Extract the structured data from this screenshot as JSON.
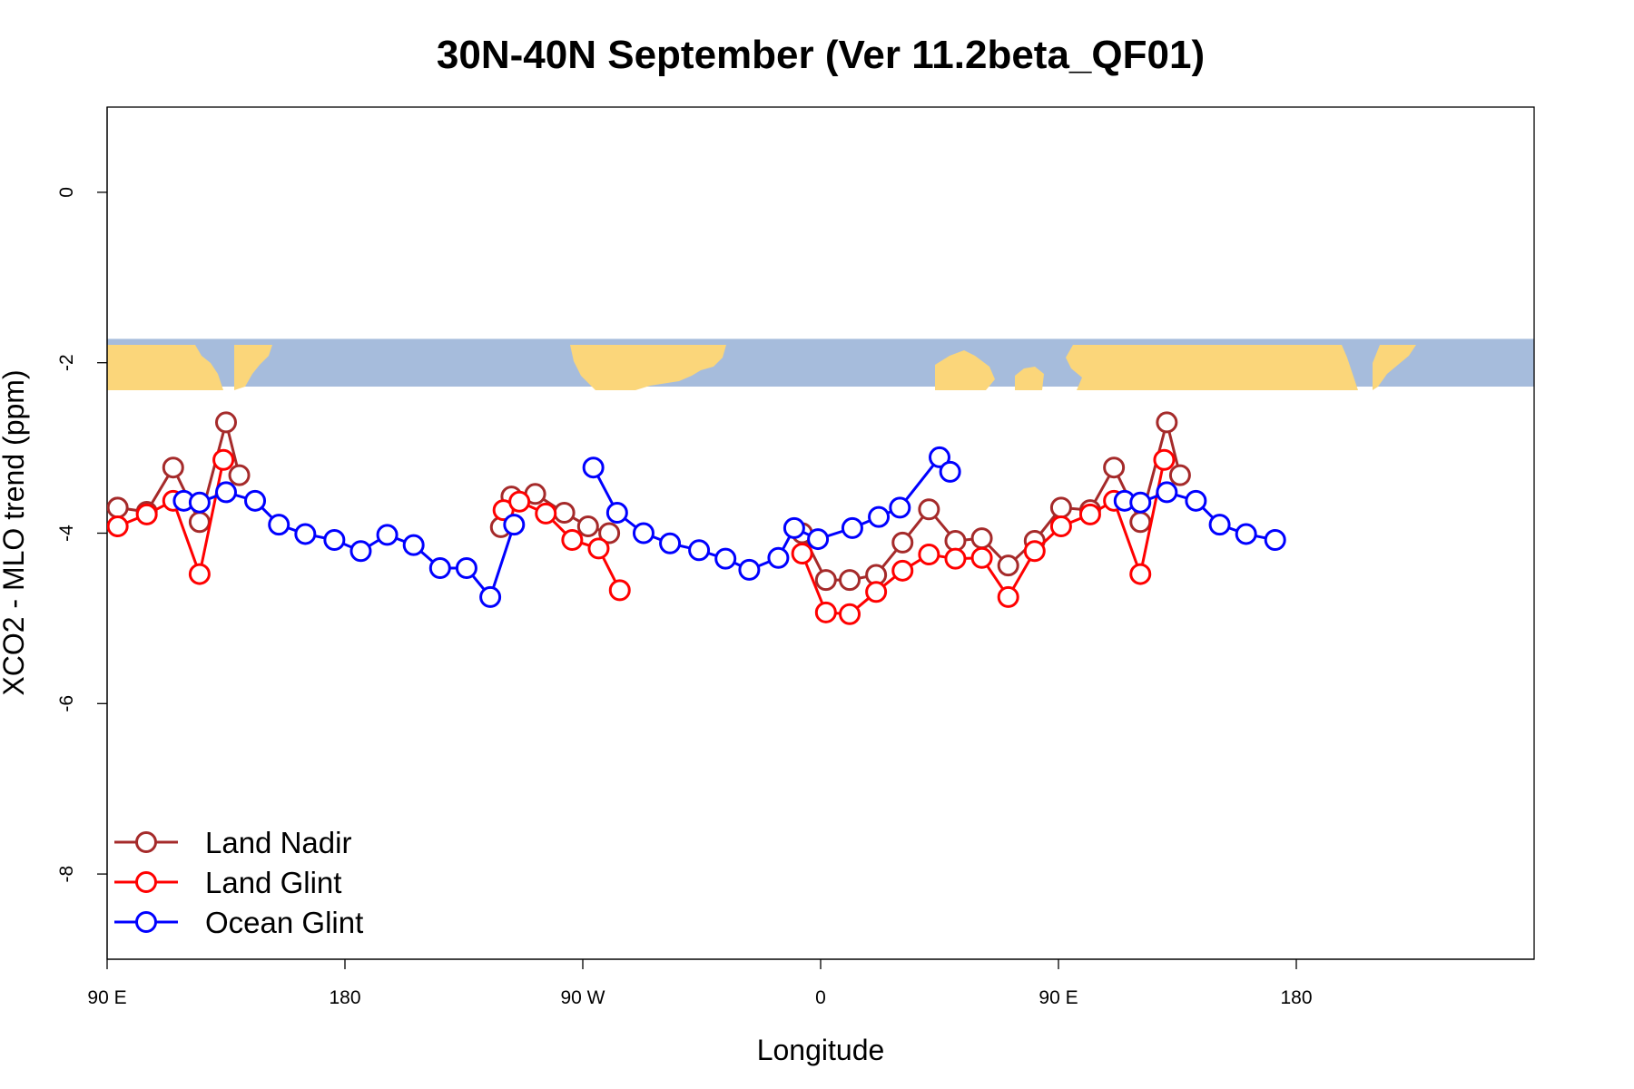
{
  "chart_data": {
    "type": "line",
    "title": "30N-40N September (Ver 11.2beta_QF01)",
    "xlabel": "Longitude",
    "ylabel": "XCO2 - MLO trend (ppm)",
    "xlim": [
      90,
      630
    ],
    "ylim": [
      -9,
      1
    ],
    "x_ticks": [
      {
        "value": 90,
        "label": "90 E"
      },
      {
        "value": 180,
        "label": "180"
      },
      {
        "value": 270,
        "label": "90 W"
      },
      {
        "value": 360,
        "label": "0"
      },
      {
        "value": 450,
        "label": "90 E"
      },
      {
        "value": 540,
        "label": "180"
      }
    ],
    "y_ticks": [
      {
        "value": 0,
        "label": "0"
      },
      {
        "value": -2,
        "label": "-2"
      },
      {
        "value": -4,
        "label": "-4"
      },
      {
        "value": -6,
        "label": "-6"
      },
      {
        "value": -8,
        "label": "-8"
      }
    ],
    "map_strip": {
      "y_top": -1.72,
      "y_bottom": -2.28,
      "ocean_color": "#a6bcdc",
      "land_color": "#fbd67a"
    },
    "legend_position": "bottom-left",
    "series": [
      {
        "name": "Land Nadir",
        "color": "#a52a2a",
        "segments": [
          [
            [
              94,
              -3.7
            ],
            [
              105,
              -3.75
            ],
            [
              115,
              -3.23
            ],
            [
              125,
              -3.87
            ],
            [
              135,
              -2.7
            ],
            [
              140,
              -3.32
            ]
          ],
          [
            [
              239,
              -3.93
            ],
            [
              243,
              -3.57
            ],
            [
              252,
              -3.54
            ],
            [
              263,
              -3.76
            ],
            [
              272,
              -3.92
            ],
            [
              280,
              -4
            ]
          ],
          [
            [
              353,
              -4
            ],
            [
              362,
              -4.55
            ],
            [
              371,
              -4.55
            ],
            [
              381,
              -4.49
            ],
            [
              391,
              -4.11
            ],
            [
              401,
              -3.72
            ],
            [
              411,
              -4.09
            ],
            [
              421,
              -4.06
            ],
            [
              431,
              -4.38
            ],
            [
              441,
              -4.09
            ],
            [
              451,
              -3.7
            ],
            [
              462,
              -3.73
            ],
            [
              471,
              -3.23
            ],
            [
              481,
              -3.87
            ],
            [
              491,
              -2.7
            ],
            [
              496,
              -3.32
            ]
          ]
        ]
      },
      {
        "name": "Land Glint",
        "color": "#ff0000",
        "segments": [
          [
            [
              94,
              -3.92
            ],
            [
              105,
              -3.78
            ],
            [
              115,
              -3.62
            ],
            [
              125,
              -4.48
            ],
            [
              134,
              -3.14
            ]
          ],
          [
            [
              240,
              -3.73
            ],
            [
              246,
              -3.63
            ],
            [
              256,
              -3.77
            ],
            [
              266,
              -4.08
            ],
            [
              276,
              -4.18
            ],
            [
              284,
              -4.67
            ]
          ],
          [
            [
              353,
              -4.24
            ],
            [
              362,
              -4.93
            ],
            [
              371,
              -4.95
            ],
            [
              381,
              -4.69
            ],
            [
              391,
              -4.44
            ],
            [
              401,
              -4.25
            ],
            [
              411,
              -4.3
            ],
            [
              421,
              -4.29
            ],
            [
              431,
              -4.75
            ],
            [
              441,
              -4.21
            ],
            [
              451,
              -3.92
            ],
            [
              462,
              -3.78
            ],
            [
              471,
              -3.62
            ],
            [
              481,
              -4.48
            ],
            [
              490,
              -3.14
            ]
          ]
        ]
      },
      {
        "name": "Ocean Glint",
        "color": "#0000ff",
        "segments": [
          [
            [
              119,
              -3.62
            ],
            [
              125,
              -3.64
            ],
            [
              135,
              -3.52
            ],
            [
              146,
              -3.62
            ],
            [
              155,
              -3.9
            ],
            [
              165,
              -4.01
            ],
            [
              176,
              -4.08
            ],
            [
              186,
              -4.21
            ],
            [
              196,
              -4.02
            ],
            [
              206,
              -4.14
            ],
            [
              216,
              -4.41
            ],
            [
              226,
              -4.41
            ],
            [
              235,
              -4.75
            ],
            [
              244,
              -3.9
            ]
          ],
          [
            [
              274,
              -3.23
            ],
            [
              283,
              -3.76
            ],
            [
              293,
              -4
            ],
            [
              303,
              -4.12
            ],
            [
              314,
              -4.2
            ],
            [
              324,
              -4.3
            ],
            [
              333,
              -4.43
            ],
            [
              344,
              -4.29
            ],
            [
              350,
              -3.94
            ],
            [
              359,
              -4.07
            ],
            [
              372,
              -3.94
            ],
            [
              382,
              -3.81
            ],
            [
              390,
              -3.7
            ],
            [
              405,
              -3.11
            ],
            [
              409,
              -3.28
            ]
          ],
          [
            [
              475,
              -3.62
            ],
            [
              481,
              -3.64
            ],
            [
              491,
              -3.52
            ],
            [
              502,
              -3.62
            ],
            [
              511,
              -3.9
            ],
            [
              521,
              -4.01
            ],
            [
              532,
              -4.08
            ]
          ]
        ]
      }
    ]
  }
}
